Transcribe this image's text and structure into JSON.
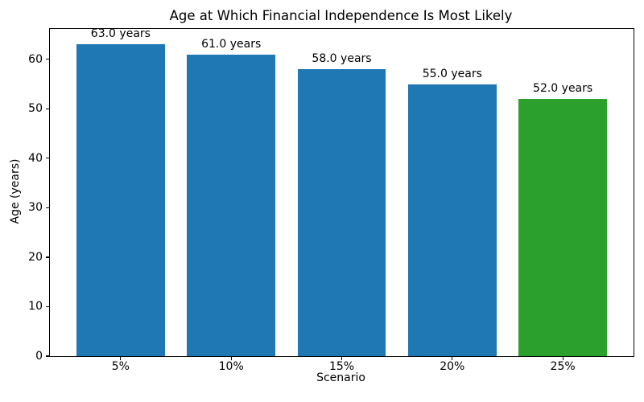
{
  "chart_data": {
    "type": "bar",
    "title": "Age at Which Financial Independence Is Most Likely",
    "xlabel": "Scenario",
    "ylabel": "Age (years)",
    "categories": [
      "5%",
      "10%",
      "15%",
      "20%",
      "25%"
    ],
    "values": [
      63.0,
      61.0,
      58.0,
      55.0,
      52.0
    ],
    "bar_labels": [
      "63.0 years",
      "61.0 years",
      "58.0 years",
      "55.0 years",
      "52.0 years"
    ],
    "bar_colors": [
      "#1f77b4",
      "#1f77b4",
      "#1f77b4",
      "#1f77b4",
      "#2ca02c"
    ],
    "yticks": [
      0,
      10,
      20,
      30,
      40,
      50,
      60
    ],
    "ylim": [
      0,
      66.15
    ],
    "grid": false,
    "legend_position": "none",
    "colors": {
      "default_bar": "#1f77b4",
      "highlight_bar": "#2ca02c",
      "axis": "#000000",
      "background": "#ffffff"
    }
  }
}
